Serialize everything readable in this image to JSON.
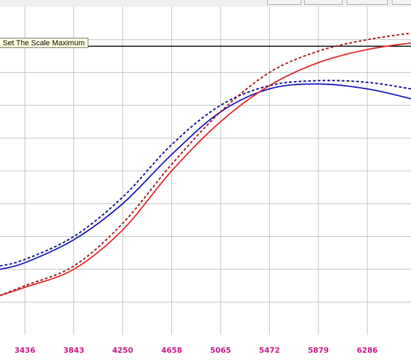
{
  "toolbar": {
    "buttons": [
      "",
      "",
      "",
      ""
    ]
  },
  "tooltip": {
    "text": "Set The Scale Maximum"
  },
  "colors": {
    "blue": "#1010c0",
    "red": "#e02020",
    "dark_blue": "#101090",
    "dark_red": "#a01818",
    "tick_label": "#c8178a",
    "grid": "#c0c0c0",
    "scale_line": "#000000"
  },
  "chart_data": {
    "type": "line",
    "xlim": [
      3229,
      6650
    ],
    "ylim": [
      0,
      100
    ],
    "x_ticks": [
      "3436",
      "3843",
      "4250",
      "4658",
      "5065",
      "5472",
      "5879",
      "6286"
    ],
    "grid": true,
    "scale_max_line": 88,
    "series": [
      {
        "color": "blue",
        "style": "solid",
        "points": [
          [
            3229,
            20
          ],
          [
            3436,
            22
          ],
          [
            3843,
            29
          ],
          [
            4250,
            40
          ],
          [
            4658,
            55
          ],
          [
            5065,
            68
          ],
          [
            5472,
            75
          ],
          [
            5879,
            76.5
          ],
          [
            6286,
            75
          ],
          [
            6650,
            72
          ]
        ]
      },
      {
        "color": "dark_blue",
        "style": "dashed",
        "points": [
          [
            3229,
            21
          ],
          [
            3436,
            23
          ],
          [
            3843,
            30
          ],
          [
            4250,
            42
          ],
          [
            4658,
            58
          ],
          [
            5065,
            70
          ],
          [
            5472,
            76
          ],
          [
            5879,
            77.5
          ],
          [
            6286,
            77
          ],
          [
            6650,
            75
          ]
        ]
      },
      {
        "color": "red",
        "style": "solid",
        "points": [
          [
            3229,
            12
          ],
          [
            3436,
            14.5
          ],
          [
            3843,
            20
          ],
          [
            4250,
            32
          ],
          [
            4658,
            50
          ],
          [
            5065,
            65
          ],
          [
            5472,
            76
          ],
          [
            5879,
            83
          ],
          [
            6286,
            87
          ],
          [
            6650,
            89
          ]
        ]
      },
      {
        "color": "dark_red",
        "style": "dashed",
        "points": [
          [
            3229,
            12
          ],
          [
            3436,
            15
          ],
          [
            3843,
            21
          ],
          [
            4250,
            34
          ],
          [
            4658,
            52
          ],
          [
            5065,
            68
          ],
          [
            5472,
            80
          ],
          [
            5879,
            86.5
          ],
          [
            6286,
            90
          ],
          [
            6650,
            92
          ]
        ]
      }
    ]
  }
}
